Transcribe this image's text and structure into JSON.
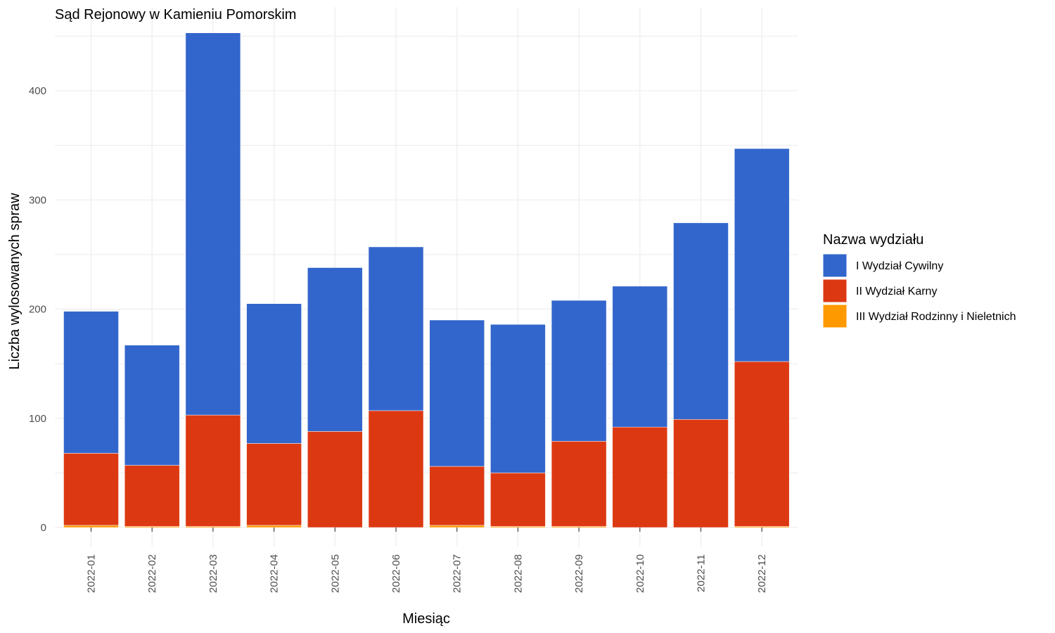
{
  "chart_data": {
    "type": "bar",
    "stacked": true,
    "title": "Sąd Rejonowy w Kamieniu Pomorskim",
    "xlabel": "Miesiąc",
    "ylabel": "Liczba wylosowanych spraw",
    "ylim": [
      0,
      460
    ],
    "yticks": [
      0,
      100,
      200,
      300,
      400
    ],
    "grid": true,
    "legend_position": "right",
    "legend_title": "Nazwa wydziału",
    "categories": [
      "2022-01",
      "2022-02",
      "2022-03",
      "2022-04",
      "2022-05",
      "2022-06",
      "2022-07",
      "2022-08",
      "2022-09",
      "2022-10",
      "2022-11",
      "2022-12"
    ],
    "series": [
      {
        "name": "I Wydział Cywilny",
        "color": "#3366cc",
        "values": [
          130,
          110,
          350,
          128,
          150,
          150,
          134,
          136,
          129,
          129,
          180,
          195
        ]
      },
      {
        "name": "II Wydział Karny",
        "color": "#dc3912",
        "values": [
          66,
          56,
          102,
          75,
          88,
          107,
          54,
          49,
          78,
          92,
          99,
          151
        ]
      },
      {
        "name": "III Wydział Rodzinny i Nieletnich",
        "color": "#ff9900",
        "values": [
          2,
          1,
          1,
          2,
          0,
          0,
          2,
          1,
          1,
          0,
          0,
          1
        ]
      }
    ]
  }
}
